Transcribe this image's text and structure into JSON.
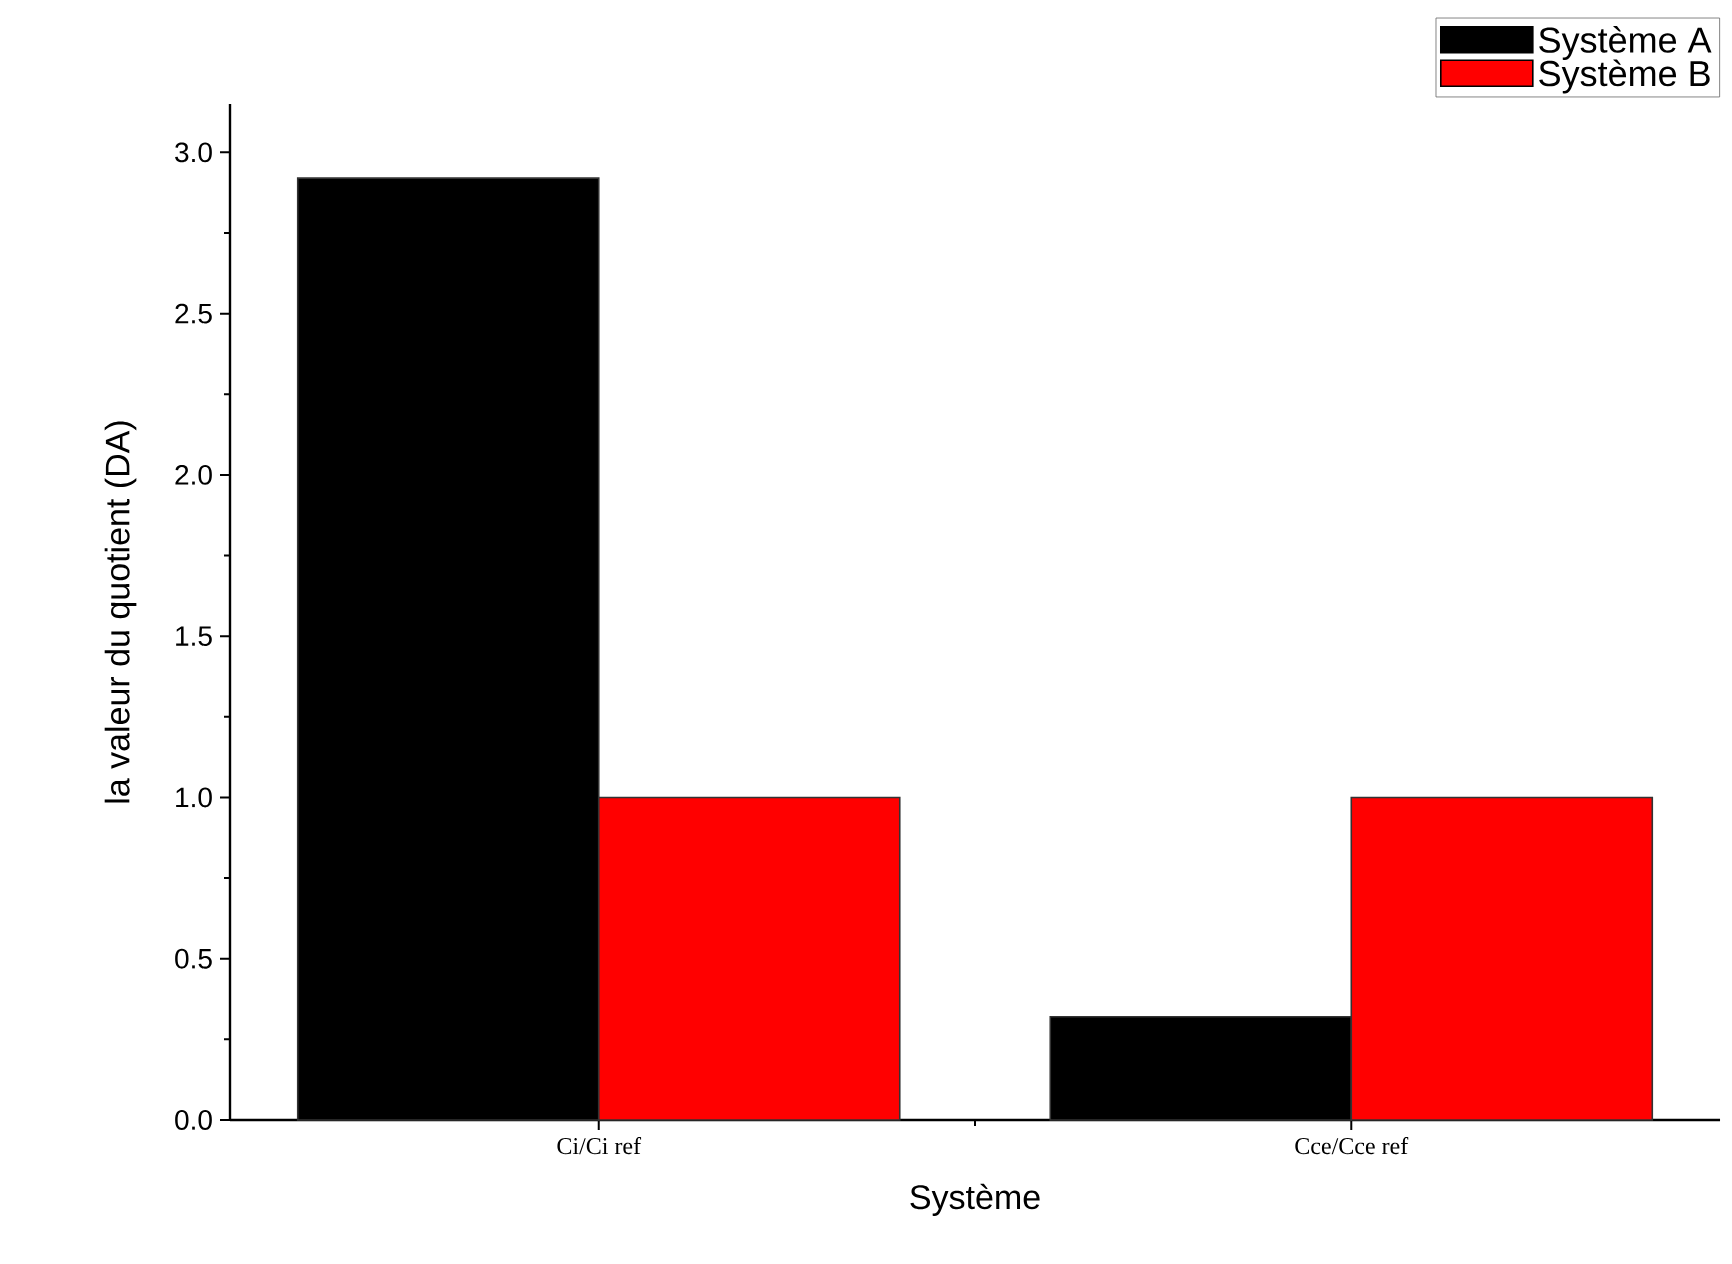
{
  "chart_data": {
    "type": "bar",
    "xlabel": "Système",
    "ylabel": "la valeur du quotient (DA)",
    "categories": [
      "Ci/Ci ref",
      "Cce/Cce ref"
    ],
    "series": [
      {
        "name": "Système A",
        "color": "#000000",
        "values": [
          2.92,
          0.32
        ]
      },
      {
        "name": "Système B",
        "color": "#ff0000",
        "values": [
          1.0,
          1.0
        ]
      }
    ],
    "ylim": [
      0,
      3.15
    ],
    "yticks": [
      {
        "value": 0,
        "label": "0.0"
      },
      0.5,
      {
        "value": 1,
        "label": "1.0"
      },
      1.5,
      {
        "value": 2,
        "label": "2.0"
      },
      2.5,
      {
        "value": 3,
        "label": "3.0"
      }
    ],
    "legend": "top right",
    "grid": false
  }
}
